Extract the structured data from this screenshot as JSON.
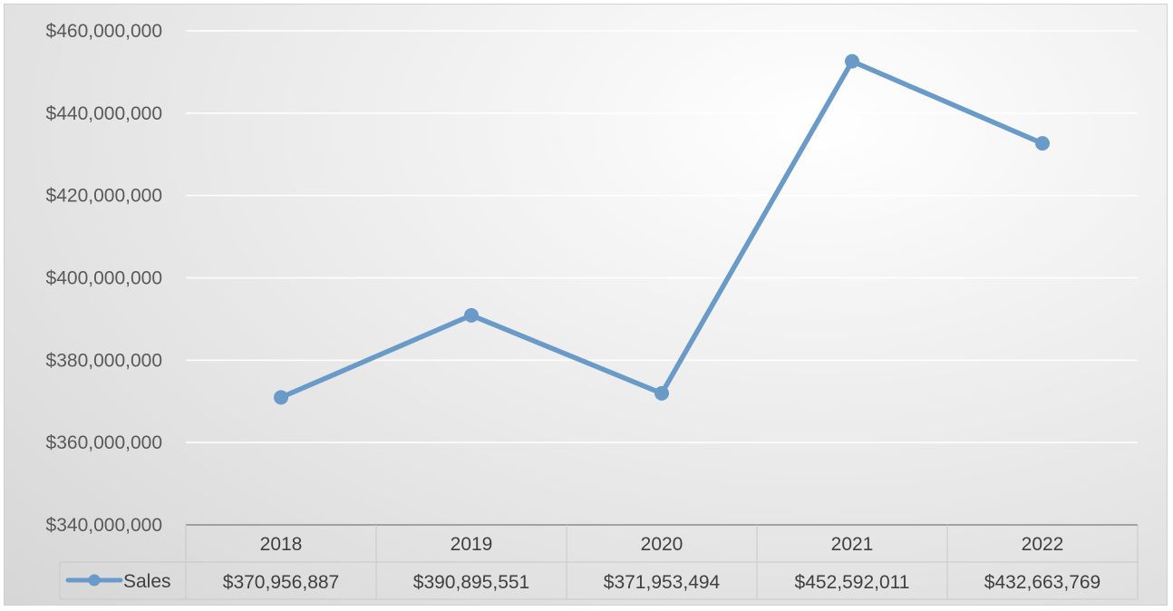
{
  "chart_data": {
    "type": "line",
    "title": "",
    "xlabel": "",
    "ylabel": "",
    "categories": [
      "2018",
      "2019",
      "2020",
      "2021",
      "2022"
    ],
    "series": [
      {
        "name": "Sales",
        "values": [
          370956887,
          390895551,
          371953494,
          452592011,
          432663769
        ],
        "value_labels": [
          "$370,956,887",
          "$390,895,551",
          "$371,953,494",
          "$452,592,011",
          "$432,663,769"
        ],
        "color": "#6a9bc8"
      }
    ],
    "ylim": [
      340000000,
      460000000
    ],
    "yticks": [
      340000000,
      360000000,
      380000000,
      400000000,
      420000000,
      440000000,
      460000000
    ],
    "ytick_labels": [
      "$340,000,000",
      "$360,000,000",
      "$380,000,000",
      "$400,000,000",
      "$420,000,000",
      "$440,000,000",
      "$460,000,000"
    ],
    "grid": true,
    "legend": "data-table",
    "data_table": true
  }
}
